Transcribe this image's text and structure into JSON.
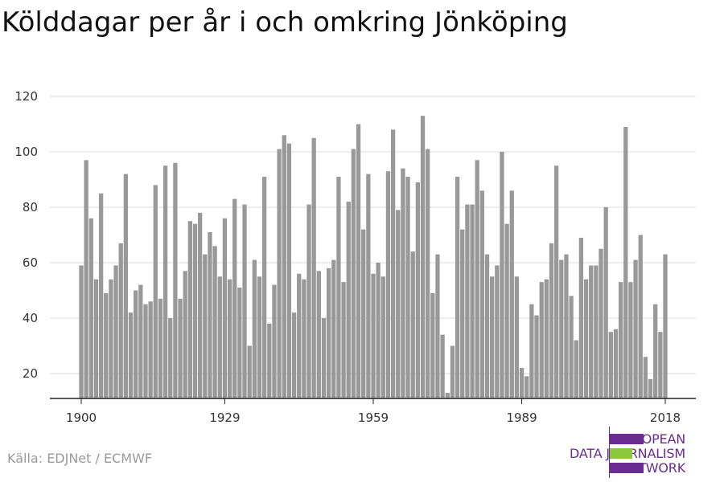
{
  "title": "Kölddagar per år i och omkring Jönköping",
  "source": "Källa: EDJNet / ECMWF",
  "logo": {
    "lines": [
      "EUROPEAN",
      "DATA JOURNALISM",
      "NETWORK"
    ],
    "colors": {
      "purple": "#6a2c91",
      "green": "#8dc63f"
    }
  },
  "colors": {
    "bar": "#999999",
    "grid": "#dddddd",
    "axis": "#222222"
  },
  "chart_data": {
    "type": "bar",
    "title": "Kölddagar per år i och omkring Jönköping",
    "xlabel": "",
    "ylabel": "",
    "ylim": [
      11,
      120
    ],
    "y_ticks": [
      20,
      40,
      60,
      80,
      100,
      120
    ],
    "x_ticks": [
      1900,
      1929,
      1959,
      1989,
      2018
    ],
    "grid": true,
    "x": [
      1900,
      1901,
      1902,
      1903,
      1904,
      1905,
      1906,
      1907,
      1908,
      1909,
      1910,
      1911,
      1912,
      1913,
      1914,
      1915,
      1916,
      1917,
      1918,
      1919,
      1920,
      1921,
      1922,
      1923,
      1924,
      1925,
      1926,
      1927,
      1928,
      1929,
      1930,
      1931,
      1932,
      1933,
      1934,
      1935,
      1936,
      1937,
      1938,
      1939,
      1940,
      1941,
      1942,
      1943,
      1944,
      1945,
      1946,
      1947,
      1948,
      1949,
      1950,
      1951,
      1952,
      1953,
      1954,
      1955,
      1956,
      1957,
      1958,
      1959,
      1960,
      1961,
      1962,
      1963,
      1964,
      1965,
      1966,
      1967,
      1968,
      1969,
      1970,
      1971,
      1972,
      1973,
      1974,
      1975,
      1976,
      1977,
      1978,
      1979,
      1980,
      1981,
      1982,
      1983,
      1984,
      1985,
      1986,
      1987,
      1988,
      1989,
      1990,
      1991,
      1992,
      1993,
      1994,
      1995,
      1996,
      1997,
      1998,
      1999,
      2000,
      2001,
      2002,
      2003,
      2004,
      2005,
      2006,
      2007,
      2008,
      2009,
      2010,
      2011,
      2012,
      2013,
      2014,
      2015,
      2016,
      2017,
      2018
    ],
    "values": [
      59,
      97,
      76,
      54,
      85,
      49,
      54,
      59,
      67,
      92,
      42,
      50,
      52,
      45,
      46,
      88,
      47,
      95,
      40,
      96,
      47,
      57,
      75,
      74,
      78,
      63,
      71,
      66,
      55,
      76,
      54,
      83,
      51,
      81,
      30,
      61,
      55,
      91,
      38,
      52,
      101,
      106,
      103,
      42,
      56,
      54,
      81,
      105,
      57,
      40,
      58,
      61,
      91,
      53,
      82,
      101,
      110,
      72,
      92,
      56,
      60,
      55,
      93,
      108,
      79,
      94,
      91,
      64,
      89,
      113,
      101,
      49,
      63,
      34,
      13,
      30,
      91,
      72,
      81,
      81,
      97,
      86,
      63,
      55,
      59,
      100,
      74,
      86,
      55,
      22,
      19,
      45,
      41,
      53,
      54,
      67,
      95,
      61,
      63,
      48,
      32,
      69,
      54,
      59,
      59,
      65,
      80,
      35,
      36,
      53,
      109,
      53,
      61,
      70,
      26,
      18,
      45,
      35,
      63
    ]
  }
}
